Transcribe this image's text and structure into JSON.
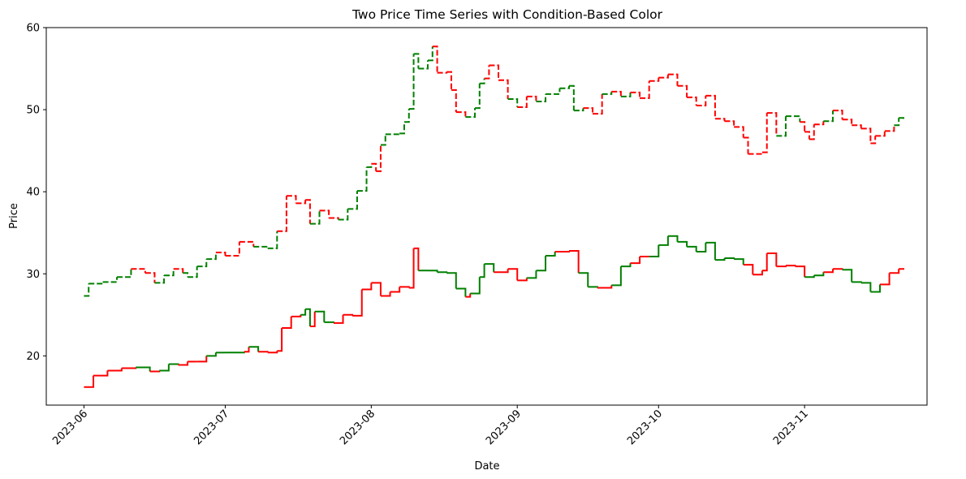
{
  "chart_data": {
    "type": "line",
    "title": "Two Price Time Series with Condition-Based Color",
    "xlabel": "Date",
    "ylabel": "Price",
    "xlim": [
      "2023-05-24",
      "2023-11-27"
    ],
    "ylim": [
      14,
      60
    ],
    "x_ticks": [
      "2023-06",
      "2023-07",
      "2023-08",
      "2023-09",
      "2023-10",
      "2023-11"
    ],
    "y_ticks": [
      20,
      30,
      40,
      50,
      60
    ],
    "grid": false,
    "legend": "none",
    "colors": {
      "up": "#008000",
      "down": "#ff0000"
    },
    "series": [
      {
        "line_style": "dashed",
        "points": [
          [
            "2023-06-01",
            27.3,
            "green"
          ],
          [
            "2023-06-02",
            28.8,
            "green"
          ],
          [
            "2023-06-05",
            29.0,
            "green"
          ],
          [
            "2023-06-08",
            29.6,
            "green"
          ],
          [
            "2023-06-11",
            30.6,
            "green"
          ],
          [
            "2023-06-14",
            30.1,
            "red"
          ],
          [
            "2023-06-16",
            28.9,
            "red"
          ],
          [
            "2023-06-18",
            29.8,
            "green"
          ],
          [
            "2023-06-20",
            30.6,
            "green"
          ],
          [
            "2023-06-22",
            30.1,
            "red"
          ],
          [
            "2023-06-23",
            29.6,
            "green"
          ],
          [
            "2023-06-25",
            30.9,
            "green"
          ],
          [
            "2023-06-27",
            31.8,
            "green"
          ],
          [
            "2023-06-29",
            32.6,
            "green"
          ],
          [
            "2023-07-01",
            32.2,
            "red"
          ],
          [
            "2023-07-04",
            33.9,
            "red"
          ],
          [
            "2023-07-07",
            33.3,
            "red"
          ],
          [
            "2023-07-10",
            33.1,
            "green"
          ],
          [
            "2023-07-12",
            35.2,
            "green"
          ],
          [
            "2023-07-14",
            39.5,
            "red"
          ],
          [
            "2023-07-16",
            38.6,
            "red"
          ],
          [
            "2023-07-18",
            39.0,
            "red"
          ],
          [
            "2023-07-19",
            36.1,
            "red"
          ],
          [
            "2023-07-21",
            37.7,
            "green"
          ],
          [
            "2023-07-23",
            36.8,
            "red"
          ],
          [
            "2023-07-25",
            36.6,
            "red"
          ],
          [
            "2023-07-27",
            37.9,
            "green"
          ],
          [
            "2023-07-29",
            40.1,
            "green"
          ],
          [
            "2023-07-31",
            43.0,
            "green"
          ],
          [
            "2023-08-01",
            43.4,
            "green"
          ],
          [
            "2023-08-02",
            42.5,
            "red"
          ],
          [
            "2023-08-03",
            45.7,
            "red"
          ],
          [
            "2023-08-04",
            47.0,
            "green"
          ],
          [
            "2023-08-07",
            47.1,
            "green"
          ],
          [
            "2023-08-08",
            48.5,
            "green"
          ],
          [
            "2023-08-09",
            50.1,
            "green"
          ],
          [
            "2023-08-10",
            56.8,
            "green"
          ],
          [
            "2023-08-11",
            55.0,
            "green"
          ],
          [
            "2023-08-13",
            56.0,
            "green"
          ],
          [
            "2023-08-14",
            57.7,
            "green"
          ],
          [
            "2023-08-15",
            54.5,
            "red"
          ],
          [
            "2023-08-17",
            54.6,
            "red"
          ],
          [
            "2023-08-18",
            52.4,
            "red"
          ],
          [
            "2023-08-19",
            49.7,
            "red"
          ],
          [
            "2023-08-21",
            49.1,
            "red"
          ],
          [
            "2023-08-23",
            50.2,
            "green"
          ],
          [
            "2023-08-24",
            53.2,
            "green"
          ],
          [
            "2023-08-25",
            53.8,
            "green"
          ],
          [
            "2023-08-26",
            55.4,
            "red"
          ],
          [
            "2023-08-28",
            53.6,
            "red"
          ],
          [
            "2023-08-30",
            51.3,
            "red"
          ],
          [
            "2023-09-01",
            50.3,
            "green"
          ],
          [
            "2023-09-03",
            51.6,
            "red"
          ],
          [
            "2023-09-05",
            51.0,
            "red"
          ],
          [
            "2023-09-07",
            51.9,
            "green"
          ],
          [
            "2023-09-10",
            52.6,
            "green"
          ],
          [
            "2023-09-12",
            52.9,
            "green"
          ],
          [
            "2023-09-13",
            49.9,
            "green"
          ],
          [
            "2023-09-15",
            50.2,
            "green"
          ],
          [
            "2023-09-17",
            49.5,
            "red"
          ],
          [
            "2023-09-19",
            51.9,
            "red"
          ],
          [
            "2023-09-21",
            52.2,
            "green"
          ],
          [
            "2023-09-23",
            51.6,
            "red"
          ],
          [
            "2023-09-25",
            52.1,
            "green"
          ],
          [
            "2023-09-27",
            51.4,
            "red"
          ],
          [
            "2023-09-29",
            53.5,
            "red"
          ],
          [
            "2023-10-01",
            53.9,
            "red"
          ],
          [
            "2023-10-03",
            54.3,
            "red"
          ],
          [
            "2023-10-05",
            52.9,
            "red"
          ],
          [
            "2023-10-07",
            51.5,
            "red"
          ],
          [
            "2023-10-09",
            50.5,
            "red"
          ],
          [
            "2023-10-11",
            51.7,
            "red"
          ],
          [
            "2023-10-13",
            48.9,
            "red"
          ],
          [
            "2023-10-15",
            48.6,
            "red"
          ],
          [
            "2023-10-17",
            47.9,
            "red"
          ],
          [
            "2023-10-19",
            46.6,
            "red"
          ],
          [
            "2023-10-20",
            44.6,
            "red"
          ],
          [
            "2023-10-23",
            44.8,
            "red"
          ],
          [
            "2023-10-24",
            49.6,
            "red"
          ],
          [
            "2023-10-26",
            46.8,
            "red"
          ],
          [
            "2023-10-28",
            49.2,
            "green"
          ],
          [
            "2023-10-31",
            48.5,
            "green"
          ],
          [
            "2023-11-01",
            47.3,
            "red"
          ],
          [
            "2023-11-02",
            46.4,
            "red"
          ],
          [
            "2023-11-03",
            48.2,
            "red"
          ],
          [
            "2023-11-05",
            48.6,
            "red"
          ],
          [
            "2023-11-07",
            49.9,
            "green"
          ],
          [
            "2023-11-09",
            48.8,
            "red"
          ],
          [
            "2023-11-11",
            48.1,
            "red"
          ],
          [
            "2023-11-13",
            47.7,
            "red"
          ],
          [
            "2023-11-15",
            45.9,
            "red"
          ],
          [
            "2023-11-16",
            46.8,
            "red"
          ],
          [
            "2023-11-18",
            47.4,
            "red"
          ],
          [
            "2023-11-20",
            48.1,
            "red"
          ],
          [
            "2023-11-21",
            49.0,
            "green"
          ],
          [
            "2023-11-22",
            48.8,
            "green"
          ]
        ]
      },
      {
        "line_style": "solid",
        "points": [
          [
            "2023-06-01",
            16.2,
            "red"
          ],
          [
            "2023-06-03",
            17.6,
            "red"
          ],
          [
            "2023-06-06",
            18.2,
            "red"
          ],
          [
            "2023-06-09",
            18.5,
            "red"
          ],
          [
            "2023-06-12",
            18.6,
            "red"
          ],
          [
            "2023-06-15",
            18.1,
            "green"
          ],
          [
            "2023-06-17",
            18.2,
            "red"
          ],
          [
            "2023-06-19",
            19.0,
            "green"
          ],
          [
            "2023-06-21",
            18.9,
            "green"
          ],
          [
            "2023-06-23",
            19.3,
            "red"
          ],
          [
            "2023-06-25",
            19.3,
            "red"
          ],
          [
            "2023-06-27",
            20.0,
            "red"
          ],
          [
            "2023-06-29",
            20.4,
            "green"
          ],
          [
            "2023-07-01",
            20.4,
            "green"
          ],
          [
            "2023-07-05",
            20.5,
            "green"
          ],
          [
            "2023-07-06",
            21.1,
            "red"
          ],
          [
            "2023-07-08",
            20.5,
            "green"
          ],
          [
            "2023-07-10",
            20.4,
            "red"
          ],
          [
            "2023-07-12",
            20.6,
            "red"
          ],
          [
            "2023-07-13",
            23.4,
            "red"
          ],
          [
            "2023-07-15",
            24.8,
            "red"
          ],
          [
            "2023-07-17",
            25.0,
            "red"
          ],
          [
            "2023-07-18",
            25.7,
            "green"
          ],
          [
            "2023-07-19",
            23.6,
            "green"
          ],
          [
            "2023-07-20",
            25.4,
            "red"
          ],
          [
            "2023-07-22",
            24.1,
            "green"
          ],
          [
            "2023-07-24",
            24.0,
            "green"
          ],
          [
            "2023-07-26",
            25.0,
            "red"
          ],
          [
            "2023-07-28",
            24.9,
            "red"
          ],
          [
            "2023-07-30",
            28.1,
            "red"
          ],
          [
            "2023-08-01",
            28.9,
            "red"
          ],
          [
            "2023-08-03",
            27.3,
            "red"
          ],
          [
            "2023-08-05",
            27.8,
            "red"
          ],
          [
            "2023-08-07",
            28.4,
            "red"
          ],
          [
            "2023-08-09",
            28.3,
            "red"
          ],
          [
            "2023-08-10",
            33.1,
            "red"
          ],
          [
            "2023-08-11",
            30.4,
            "red"
          ],
          [
            "2023-08-13",
            30.4,
            "green"
          ],
          [
            "2023-08-15",
            30.2,
            "green"
          ],
          [
            "2023-08-17",
            30.1,
            "green"
          ],
          [
            "2023-08-19",
            28.2,
            "green"
          ],
          [
            "2023-08-21",
            27.2,
            "green"
          ],
          [
            "2023-08-22",
            27.6,
            "red"
          ],
          [
            "2023-08-24",
            29.6,
            "green"
          ],
          [
            "2023-08-25",
            31.2,
            "green"
          ],
          [
            "2023-08-27",
            30.2,
            "green"
          ],
          [
            "2023-08-30",
            30.6,
            "red"
          ],
          [
            "2023-09-01",
            29.2,
            "red"
          ],
          [
            "2023-09-03",
            29.5,
            "red"
          ],
          [
            "2023-09-05",
            30.4,
            "green"
          ],
          [
            "2023-09-07",
            32.2,
            "green"
          ],
          [
            "2023-09-09",
            32.7,
            "green"
          ],
          [
            "2023-09-12",
            32.8,
            "red"
          ],
          [
            "2023-09-14",
            30.1,
            "red"
          ],
          [
            "2023-09-16",
            28.4,
            "green"
          ],
          [
            "2023-09-18",
            28.3,
            "green"
          ],
          [
            "2023-09-21",
            28.6,
            "red"
          ],
          [
            "2023-09-23",
            30.9,
            "green"
          ],
          [
            "2023-09-25",
            31.3,
            "green"
          ],
          [
            "2023-09-27",
            32.1,
            "red"
          ],
          [
            "2023-09-29",
            32.1,
            "red"
          ],
          [
            "2023-10-01",
            33.5,
            "green"
          ],
          [
            "2023-10-03",
            34.6,
            "green"
          ],
          [
            "2023-10-05",
            33.9,
            "green"
          ],
          [
            "2023-10-07",
            33.3,
            "green"
          ],
          [
            "2023-10-09",
            32.7,
            "green"
          ],
          [
            "2023-10-11",
            33.8,
            "green"
          ],
          [
            "2023-10-13",
            31.7,
            "green"
          ],
          [
            "2023-10-15",
            31.9,
            "green"
          ],
          [
            "2023-10-17",
            31.8,
            "green"
          ],
          [
            "2023-10-19",
            31.1,
            "green"
          ],
          [
            "2023-10-21",
            29.9,
            "red"
          ],
          [
            "2023-10-23",
            30.4,
            "red"
          ],
          [
            "2023-10-24",
            32.5,
            "red"
          ],
          [
            "2023-10-26",
            30.9,
            "red"
          ],
          [
            "2023-10-28",
            31.0,
            "red"
          ],
          [
            "2023-10-30",
            30.9,
            "red"
          ],
          [
            "2023-11-01",
            29.6,
            "red"
          ],
          [
            "2023-11-03",
            29.8,
            "green"
          ],
          [
            "2023-11-05",
            30.2,
            "green"
          ],
          [
            "2023-11-07",
            30.6,
            "red"
          ],
          [
            "2023-11-09",
            30.5,
            "red"
          ],
          [
            "2023-11-11",
            29.0,
            "green"
          ],
          [
            "2023-11-13",
            28.9,
            "green"
          ],
          [
            "2023-11-15",
            27.8,
            "green"
          ],
          [
            "2023-11-17",
            28.7,
            "green"
          ],
          [
            "2023-11-19",
            30.1,
            "red"
          ],
          [
            "2023-11-21",
            30.6,
            "red"
          ],
          [
            "2023-11-22",
            30.5,
            "red"
          ]
        ]
      }
    ]
  }
}
